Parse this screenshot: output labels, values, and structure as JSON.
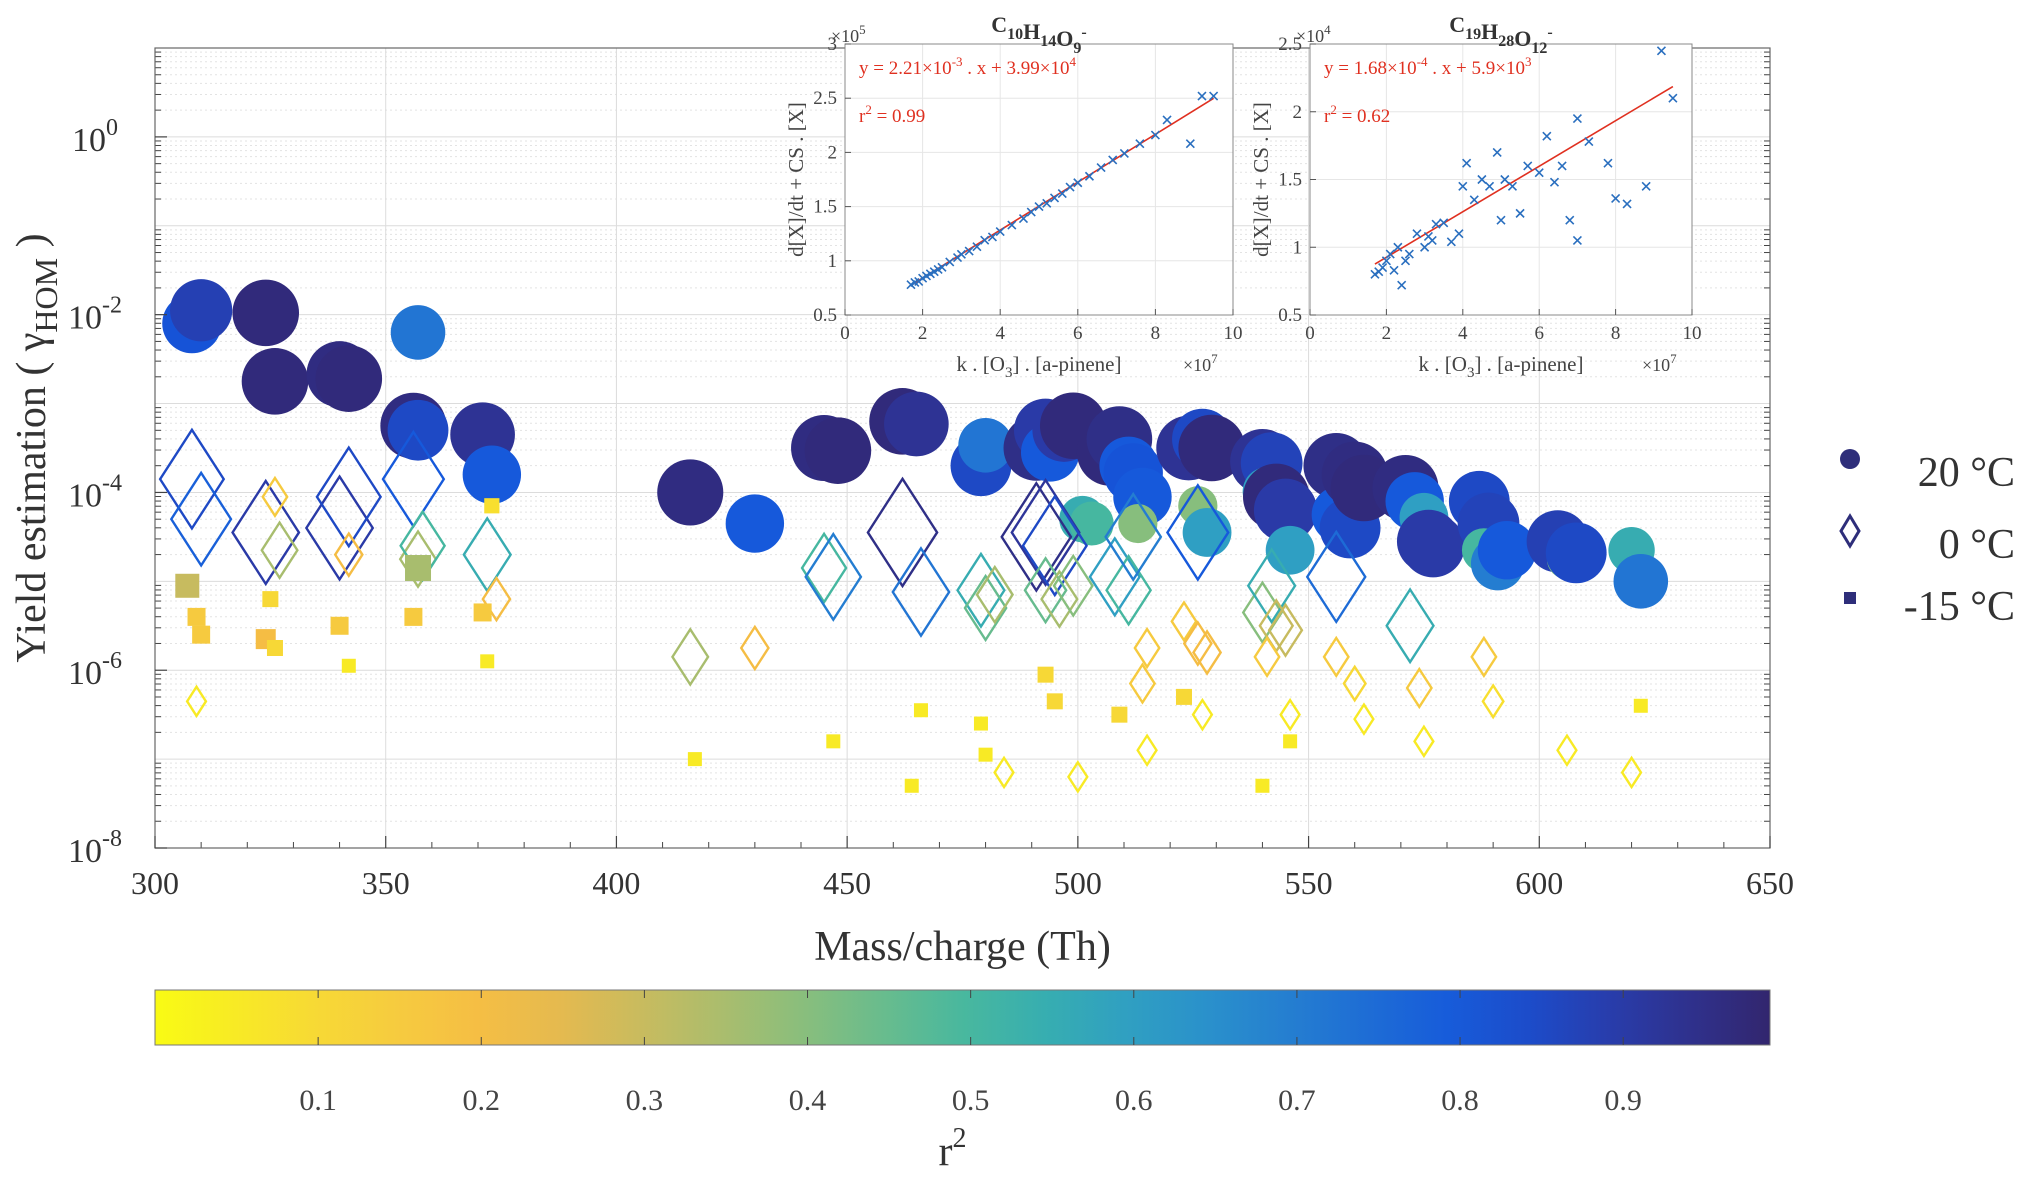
{
  "chart_data": [
    {
      "id": "main",
      "type": "scatter",
      "xlabel": "Mass/charge (Th)",
      "ylabel_main": "Yield estimation (",
      "ylabel_symbol": "γ",
      "ylabel_sub": "HOM",
      "ylabel_close": ")",
      "xlim": [
        300,
        650
      ],
      "ylim_exp": [
        -8,
        1
      ],
      "x_ticks": [
        300,
        350,
        400,
        450,
        500,
        550,
        600,
        650
      ],
      "x_tick_labels": [
        "300",
        "350",
        "400",
        "450",
        "500",
        "550",
        "600",
        "650"
      ],
      "y_ticks_exp": [
        -8,
        -6,
        -4,
        -2,
        0
      ],
      "y_tick_base": "10",
      "y_tick_exp_labels": [
        "-8",
        "-6",
        "-4",
        "-2",
        "0"
      ],
      "grid": true,
      "legend": {
        "position": "right",
        "entries": [
          {
            "marker": "circle",
            "label": "20 °C"
          },
          {
            "marker": "diamond",
            "label": "0 °C"
          },
          {
            "marker": "square",
            "label": "-15 °C"
          }
        ]
      },
      "colorbar": {
        "label": "r",
        "label_sup": "2",
        "range": [
          0,
          0.99
        ],
        "ticks": [
          0.1,
          0.2,
          0.3,
          0.4,
          0.5,
          0.6,
          0.7,
          0.8,
          0.9
        ],
        "tick_labels": [
          "0.1",
          "0.2",
          "0.3",
          "0.4",
          "0.5",
          "0.6",
          "0.7",
          "0.8",
          "0.9"
        ]
      },
      "series": [
        {
          "name": "20 °C",
          "marker": "circle",
          "points": [
            [
              308,
              -2.1,
              0.82
            ],
            [
              310,
              -1.95,
              0.88
            ],
            [
              324,
              -1.98,
              0.97
            ],
            [
              326,
              -2.75,
              0.97
            ],
            [
              340,
              -2.67,
              0.96
            ],
            [
              342,
              -2.72,
              0.97
            ],
            [
              356,
              -3.25,
              0.96
            ],
            [
              357,
              -3.3,
              0.85
            ],
            [
              357,
              -2.2,
              0.72
            ],
            [
              371,
              -3.35,
              0.93
            ],
            [
              373,
              -3.8,
              0.8
            ],
            [
              416,
              -4.0,
              0.96
            ],
            [
              430,
              -4.35,
              0.8
            ],
            [
              445,
              -3.5,
              0.96
            ],
            [
              448,
              -3.53,
              0.97
            ],
            [
              462,
              -3.2,
              0.97
            ],
            [
              465,
              -3.23,
              0.93
            ],
            [
              479,
              -3.7,
              0.85
            ],
            [
              480,
              -3.47,
              0.72
            ],
            [
              491,
              -3.5,
              0.95
            ],
            [
              493,
              -3.3,
              0.9
            ],
            [
              494,
              -3.55,
              0.8
            ],
            [
              497,
              -3.3,
              0.9
            ],
            [
              499,
              -3.25,
              0.97
            ],
            [
              501,
              -4.3,
              0.55
            ],
            [
              503,
              -4.35,
              0.5
            ],
            [
              507,
              -3.55,
              0.97
            ],
            [
              509,
              -3.4,
              0.95
            ],
            [
              511,
              -3.7,
              0.8
            ],
            [
              512,
              -3.78,
              0.82
            ],
            [
              514,
              -4.05,
              0.8
            ],
            [
              513,
              -4.35,
              0.4
            ],
            [
              524,
              -3.5,
              0.93
            ],
            [
              527,
              -3.4,
              0.85
            ],
            [
              526,
              -4.15,
              0.4
            ],
            [
              528,
              -4.45,
              0.6
            ],
            [
              529,
              -3.5,
              0.97
            ],
            [
              540,
              -3.65,
              0.93
            ],
            [
              542,
              -3.67,
              0.87
            ],
            [
              541,
              -3.99,
              0.6
            ],
            [
              543,
              -4.05,
              0.97
            ],
            [
              545,
              -4.2,
              0.9
            ],
            [
              546,
              -4.65,
              0.6
            ],
            [
              556,
              -3.7,
              0.95
            ],
            [
              557,
              -4.25,
              0.8
            ],
            [
              559,
              -4.4,
              0.85
            ],
            [
              560,
              -3.8,
              0.96
            ],
            [
              562,
              -3.95,
              0.97
            ],
            [
              571,
              -3.95,
              0.96
            ],
            [
              573,
              -4.1,
              0.8
            ],
            [
              575,
              -4.28,
              0.6
            ],
            [
              576,
              -4.55,
              0.9
            ],
            [
              577,
              -4.6,
              0.9
            ],
            [
              587,
              -4.1,
              0.85
            ],
            [
              589,
              -4.35,
              0.87
            ],
            [
              588,
              -4.65,
              0.5
            ],
            [
              591,
              -4.8,
              0.7
            ],
            [
              593,
              -4.65,
              0.8
            ],
            [
              604,
              -4.55,
              0.88
            ],
            [
              606,
              -4.75,
              0.42
            ],
            [
              608,
              -4.68,
              0.85
            ],
            [
              620,
              -4.65,
              0.55
            ],
            [
              622,
              -5.0,
              0.72
            ]
          ]
        },
        {
          "name": "0 °C",
          "marker": "diamond",
          "points": [
            [
              308,
              -3.85,
              0.85
            ],
            [
              310,
              -4.3,
              0.78
            ],
            [
              324,
              -4.45,
              0.9
            ],
            [
              326,
              -4.05,
              0.15
            ],
            [
              327,
              -4.65,
              0.35
            ],
            [
              340,
              -4.4,
              0.9
            ],
            [
              342,
              -4.05,
              0.85
            ],
            [
              342,
              -4.7,
              0.2
            ],
            [
              356,
              -3.85,
              0.8
            ],
            [
              357,
              -4.75,
              0.35
            ],
            [
              358,
              -4.6,
              0.5
            ],
            [
              372,
              -4.7,
              0.55
            ],
            [
              374,
              -5.2,
              0.2
            ],
            [
              416,
              -5.85,
              0.35
            ],
            [
              430,
              -5.75,
              0.2
            ],
            [
              445,
              -4.85,
              0.5
            ],
            [
              447,
              -4.95,
              0.7
            ],
            [
              462,
              -4.45,
              0.95
            ],
            [
              466,
              -5.12,
              0.72
            ],
            [
              479,
              -5.1,
              0.55
            ],
            [
              480,
              -5.3,
              0.45
            ],
            [
              482,
              -5.15,
              0.35
            ],
            [
              491,
              -4.5,
              0.95
            ],
            [
              493,
              -4.45,
              0.92
            ],
            [
              495,
              -4.6,
              0.85
            ],
            [
              493,
              -5.1,
              0.45
            ],
            [
              496,
              -5.2,
              0.35
            ],
            [
              499,
              -5.05,
              0.4
            ],
            [
              508,
              -4.95,
              0.6
            ],
            [
              511,
              -5.1,
              0.5
            ],
            [
              512,
              -4.5,
              0.7
            ],
            [
              515,
              -5.75,
              0.15
            ],
            [
              514,
              -6.15,
              0.15
            ],
            [
              526,
              -4.45,
              0.8
            ],
            [
              523,
              -5.45,
              0.15
            ],
            [
              526,
              -5.7,
              0.2
            ],
            [
              528,
              -5.8,
              0.2
            ],
            [
              540,
              -5.35,
              0.4
            ],
            [
              542,
              -5.05,
              0.55
            ],
            [
              543,
              -5.5,
              0.3
            ],
            [
              541,
              -5.85,
              0.15
            ],
            [
              545,
              -5.55,
              0.3
            ],
            [
              556,
              -4.95,
              0.75
            ],
            [
              556,
              -5.85,
              0.15
            ],
            [
              560,
              -6.15,
              0.1
            ],
            [
              572,
              -5.5,
              0.55
            ],
            [
              574,
              -6.2,
              0.15
            ],
            [
              588,
              -5.85,
              0.15
            ],
            [
              590,
              -6.35,
              0.08
            ],
            [
              606,
              -6.9,
              0.05
            ],
            [
              620,
              -7.15,
              0.05
            ],
            [
              309,
              -6.35,
              0.05
            ],
            [
              484,
              -7.15,
              0.05
            ],
            [
              500,
              -7.2,
              0.05
            ],
            [
              515,
              -6.9,
              0.05
            ],
            [
              527,
              -6.5,
              0.05
            ],
            [
              546,
              -6.5,
              0.05
            ],
            [
              562,
              -6.55,
              0.05
            ],
            [
              575,
              -6.8,
              0.05
            ]
          ]
        },
        {
          "name": "-15 °C",
          "marker": "square",
          "points": [
            [
              307,
              -5.05,
              0.3
            ],
            [
              309,
              -5.4,
              0.15
            ],
            [
              310,
              -5.6,
              0.15
            ],
            [
              324,
              -5.65,
              0.2
            ],
            [
              326,
              -5.75,
              0.1
            ],
            [
              325,
              -5.2,
              0.1
            ],
            [
              340,
              -5.5,
              0.15
            ],
            [
              342,
              -5.95,
              0.05
            ],
            [
              357,
              -4.85,
              0.35
            ],
            [
              356,
              -5.4,
              0.15
            ],
            [
              371,
              -5.35,
              0.15
            ],
            [
              372,
              -5.9,
              0.05
            ],
            [
              493,
              -6.05,
              0.1
            ],
            [
              495,
              -6.35,
              0.1
            ],
            [
              509,
              -6.5,
              0.1
            ],
            [
              523,
              -6.3,
              0.1
            ],
            [
              464,
              -7.3,
              0.05
            ],
            [
              466,
              -6.45,
              0.05
            ],
            [
              417,
              -7.0,
              0.05
            ],
            [
              447,
              -6.8,
              0.05
            ],
            [
              479,
              -6.6,
              0.05
            ],
            [
              480,
              -6.95,
              0.05
            ],
            [
              540,
              -7.3,
              0.05
            ],
            [
              546,
              -6.8,
              0.05
            ],
            [
              622,
              -6.4,
              0.05
            ],
            [
              373,
              -4.15,
              0.08
            ]
          ]
        }
      ]
    },
    {
      "id": "inset1",
      "type": "scatter",
      "title": "C",
      "title_parts": [
        {
          "text": "C",
          "sub": "10"
        },
        {
          "text": "H",
          "sub": "14"
        },
        {
          "text": "O",
          "sub": "9",
          "sup": "-"
        }
      ],
      "xlabel": "k . [O",
      "xlabel_sub": "3",
      "xlabel_rest": "] . [a-pinene]",
      "ylabel": "d[X]/dt + CS . [X]",
      "x_exponent_label": "×10",
      "x_exponent": "7",
      "y_exponent_label": "×10",
      "y_exponent": "5",
      "xlim": [
        0,
        10
      ],
      "ylim": [
        0.5,
        3
      ],
      "x_ticks": [
        0,
        2,
        4,
        6,
        8,
        10
      ],
      "x_tick_labels": [
        "0",
        "2",
        "4",
        "6",
        "8",
        "10"
      ],
      "y_ticks": [
        0.5,
        1,
        1.5,
        2,
        2.5,
        3
      ],
      "y_tick_labels": [
        "0.5",
        "1",
        "1.5",
        "2",
        "2.5",
        "3"
      ],
      "fit_label": "y = 2.21×10",
      "fit_exp1": "-3",
      "fit_mid": " . x + 3.99×10",
      "fit_exp2": "4",
      "r2_label": "r",
      "r2_sup": "2",
      "r2_value": " = 0.99",
      "fit_line": {
        "slope": 0.221,
        "intercept": 0.399
      },
      "x": [
        1.7,
        1.8,
        1.9,
        2.0,
        2.1,
        2.2,
        2.3,
        2.4,
        2.5,
        2.7,
        2.9,
        3.0,
        3.2,
        3.4,
        3.6,
        3.8,
        4.0,
        4.3,
        4.6,
        4.8,
        5.0,
        5.2,
        5.4,
        5.6,
        5.8,
        6.0,
        6.3,
        6.6,
        6.9,
        7.2,
        7.6,
        8.0,
        8.3,
        8.9,
        9.2,
        9.5
      ],
      "y": [
        0.78,
        0.8,
        0.81,
        0.84,
        0.86,
        0.88,
        0.9,
        0.92,
        0.94,
        0.99,
        1.03,
        1.06,
        1.09,
        1.13,
        1.19,
        1.22,
        1.27,
        1.33,
        1.39,
        1.45,
        1.5,
        1.53,
        1.58,
        1.62,
        1.68,
        1.72,
        1.78,
        1.86,
        1.93,
        1.99,
        2.08,
        2.16,
        2.3,
        2.08,
        2.52,
        2.52
      ]
    },
    {
      "id": "inset2",
      "type": "scatter",
      "title": "C",
      "title_parts": [
        {
          "text": "C",
          "sub": "19"
        },
        {
          "text": "H",
          "sub": "28"
        },
        {
          "text": "O",
          "sub": "12",
          "sup": "-"
        }
      ],
      "xlabel": "k . [O",
      "xlabel_sub": "3",
      "xlabel_rest": "] . [a-pinene]",
      "ylabel": "d[X]/dt + CS . [X]",
      "x_exponent_label": "×10",
      "x_exponent": "7",
      "y_exponent_label": "×10",
      "y_exponent": "4",
      "xlim": [
        0,
        10
      ],
      "ylim": [
        0.5,
        2.5
      ],
      "x_ticks": [
        0,
        2,
        4,
        6,
        8,
        10
      ],
      "x_tick_labels": [
        "0",
        "2",
        "4",
        "6",
        "8",
        "10"
      ],
      "y_ticks": [
        0.5,
        1,
        1.5,
        2,
        2.5
      ],
      "y_tick_labels": [
        "0.5",
        "1",
        "1.5",
        "2",
        "2.5"
      ],
      "fit_label": "y = 1.68×10",
      "fit_exp1": "-4",
      "fit_mid": " . x + 5.9×10",
      "fit_exp2": "3",
      "r2_label": "r",
      "r2_sup": "2",
      "r2_value": " = 0.62",
      "fit_line": {
        "slope": 0.168,
        "intercept": 0.59
      },
      "x": [
        1.7,
        1.8,
        1.9,
        2.0,
        2.1,
        2.2,
        2.3,
        2.4,
        2.5,
        2.6,
        2.8,
        3.0,
        3.1,
        3.2,
        3.3,
        3.5,
        3.7,
        3.9,
        4.0,
        4.1,
        4.3,
        4.5,
        4.7,
        4.9,
        5.0,
        5.1,
        5.3,
        5.5,
        5.7,
        6.0,
        6.2,
        6.4,
        6.6,
        6.8,
        7.0,
        7.0,
        7.3,
        7.8,
        8.0,
        8.3,
        8.8,
        9.2,
        9.5
      ],
      "y": [
        0.8,
        0.82,
        0.85,
        0.9,
        0.95,
        0.83,
        1.0,
        0.72,
        0.9,
        0.95,
        1.1,
        1.0,
        1.08,
        1.05,
        1.17,
        1.18,
        1.04,
        1.1,
        1.45,
        1.62,
        1.35,
        1.5,
        1.45,
        1.7,
        1.2,
        1.5,
        1.45,
        1.25,
        1.6,
        1.55,
        1.82,
        1.48,
        1.6,
        1.2,
        1.05,
        1.95,
        1.78,
        1.62,
        1.36,
        1.32,
        1.45,
        2.45,
        2.1
      ]
    }
  ]
}
